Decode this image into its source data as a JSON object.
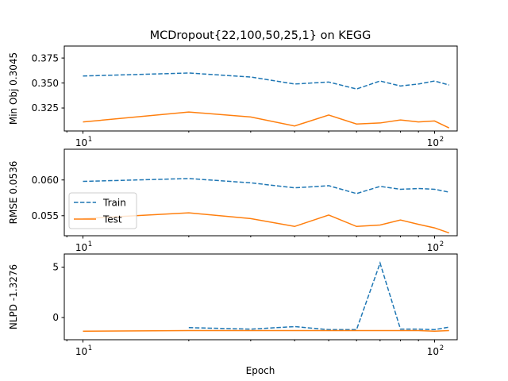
{
  "figure": {
    "title": "MCDropout{22,100,50,25,1} on KEGG",
    "xlabel": "Epoch"
  },
  "colors": {
    "train": "#1f77b4",
    "test": "#ff7f0e"
  },
  "legend": {
    "placement": "left",
    "entries": [
      "Train",
      "Test"
    ]
  },
  "chart_data": [
    {
      "type": "line",
      "ylabel": "Min Obj 0.3045",
      "xscale": "log",
      "xlim": [
        8.85,
        116
      ],
      "ylim": [
        0.302,
        0.387
      ],
      "yticks": [
        0.325,
        0.35,
        0.375
      ],
      "ytick_labels": [
        "0.325",
        "0.350",
        "0.375"
      ],
      "xticks": [
        10,
        100
      ],
      "xtick_labels": [
        "10^1",
        "10^2"
      ],
      "x": [
        10,
        20,
        30,
        40,
        50,
        60,
        70,
        80,
        90,
        100,
        110
      ],
      "series": [
        {
          "name": "Train",
          "style": "dashed",
          "values": [
            0.357,
            0.36,
            0.356,
            0.349,
            0.351,
            0.344,
            0.352,
            0.347,
            0.349,
            0.352,
            0.348
          ]
        },
        {
          "name": "Test",
          "style": "solid",
          "values": [
            0.311,
            0.321,
            0.316,
            0.307,
            0.318,
            0.309,
            0.31,
            0.313,
            0.311,
            0.312,
            0.305
          ]
        }
      ]
    },
    {
      "type": "line",
      "ylabel": "RMSE 0.0536",
      "xscale": "log",
      "xlim": [
        8.85,
        116
      ],
      "ylim": [
        0.0522,
        0.0643
      ],
      "yticks": [
        0.055,
        0.06
      ],
      "ytick_labels": [
        "0.055",
        "0.060"
      ],
      "xticks": [
        10,
        100
      ],
      "xtick_labels": [
        "10^1",
        "10^2"
      ],
      "x": [
        10,
        20,
        30,
        40,
        50,
        60,
        70,
        80,
        90,
        100,
        110
      ],
      "series": [
        {
          "name": "Train",
          "style": "dashed",
          "values": [
            0.0598,
            0.0602,
            0.0596,
            0.0589,
            0.0592,
            0.0581,
            0.0591,
            0.0587,
            0.0588,
            0.0587,
            0.0583
          ]
        },
        {
          "name": "Test",
          "style": "solid",
          "values": [
            0.0546,
            0.0554,
            0.0546,
            0.0535,
            0.0551,
            0.0535,
            0.0537,
            0.0544,
            0.0538,
            0.0533,
            0.0526
          ]
        }
      ]
    },
    {
      "type": "line",
      "ylabel": "NLPD -1.3276",
      "xscale": "log",
      "xlim": [
        8.85,
        116
      ],
      "ylim": [
        -2.2,
        6.3
      ],
      "yticks": [
        0,
        5
      ],
      "ytick_labels": [
        "0",
        "5"
      ],
      "xticks": [
        10,
        100
      ],
      "xtick_labels": [
        "10^1",
        "10^2"
      ],
      "x": [
        10,
        20,
        30,
        40,
        50,
        60,
        70,
        80,
        90,
        100,
        110
      ],
      "series": [
        {
          "name": "Train",
          "style": "dashed",
          "values": [
            null,
            -1.0,
            -1.15,
            -0.9,
            -1.2,
            -1.2,
            5.4,
            -1.15,
            -1.15,
            -1.2,
            -0.95
          ]
        },
        {
          "name": "Test",
          "style": "solid",
          "values": [
            -1.35,
            -1.3,
            -1.3,
            -1.3,
            -1.3,
            -1.3,
            -1.3,
            -1.3,
            -1.3,
            -1.35,
            -1.3
          ]
        }
      ]
    }
  ]
}
